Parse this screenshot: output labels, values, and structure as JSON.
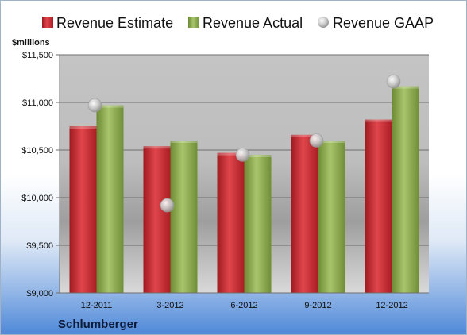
{
  "chart_data": {
    "type": "bar",
    "ylabel": "$millions",
    "company": "Schlumberger",
    "categories": [
      "12-2011",
      "3-2012",
      "6-2012",
      "9-2012",
      "12-2012"
    ],
    "ylim": [
      9000,
      11500
    ],
    "yticks": [
      9000,
      9500,
      10000,
      10500,
      11000,
      11500
    ],
    "ytick_labels": [
      "$9,000",
      "$9,500",
      "$10,000",
      "$10,500",
      "$11,000",
      "$11,500"
    ],
    "grid": true,
    "legend_position": "top",
    "series": [
      {
        "name": "Revenue Estimate",
        "type": "bar",
        "color": "#c8252c",
        "values": [
          10750,
          10540,
          10470,
          10660,
          10820
        ]
      },
      {
        "name": "Revenue Actual",
        "type": "bar",
        "color": "#8aa84a",
        "values": [
          10970,
          10600,
          10450,
          10600,
          11170
        ]
      },
      {
        "name": "Revenue GAAP",
        "type": "marker",
        "color": "#b8b8b8",
        "values": [
          10970,
          9920,
          10450,
          10600,
          11220
        ]
      }
    ]
  }
}
